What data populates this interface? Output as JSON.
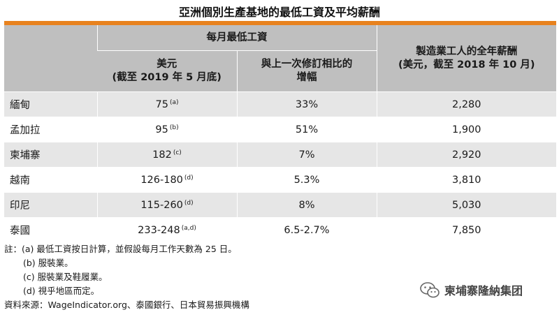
{
  "title": "亞洲個別生產基地的最低工資及平均薪酬",
  "table": {
    "header_group_min_wage": "每月最低工資",
    "header_usd_line1": "美元",
    "header_usd_line2": "(截至 2019 年 5 月底)",
    "header_change_line1": "與上一次修訂相比的",
    "header_change_line2": "增幅",
    "header_annual_line1": "製造業工人的全年薪酬",
    "header_annual_line2": "(美元，截至 2018 年 10 月)",
    "rows": [
      {
        "country": "緬甸",
        "wage": "75",
        "note": "(a)",
        "change": "33%",
        "annual": "2,280"
      },
      {
        "country": "孟加拉",
        "wage": "95",
        "note": "(b)",
        "change": "51%",
        "annual": "1,900"
      },
      {
        "country": "柬埔寨",
        "wage": "182",
        "note": "(c)",
        "change": "7%",
        "annual": "2,920"
      },
      {
        "country": "越南",
        "wage": "126-180",
        "note": "(d)",
        "change": "5.3%",
        "annual": "3,810"
      },
      {
        "country": "印尼",
        "wage": "115-260",
        "note": "(d)",
        "change": "8%",
        "annual": "5,030"
      },
      {
        "country": "泰國",
        "wage": "233-248",
        "note": "(a,d)",
        "change": "6.5-2.7%",
        "annual": "7,850"
      }
    ]
  },
  "notes": {
    "label": "註：",
    "a": "(a) 最低工資按日計算，並假設每月工作天數為 25 日。",
    "b": "(b) 服裝業。",
    "c": "(c) 服裝業及鞋履業。",
    "d": "(d) 視乎地區而定。"
  },
  "source": "資料來源：WageIndicator.org、泰國銀行、日本貿易振興機構",
  "watermark": {
    "text": "柬埔寨隆納集团",
    "icon": "wechat-icon"
  },
  "colors": {
    "accent": "#e8821e",
    "header_bg": "#bfbfbf",
    "stripe_bg": "#e6e6e6"
  }
}
